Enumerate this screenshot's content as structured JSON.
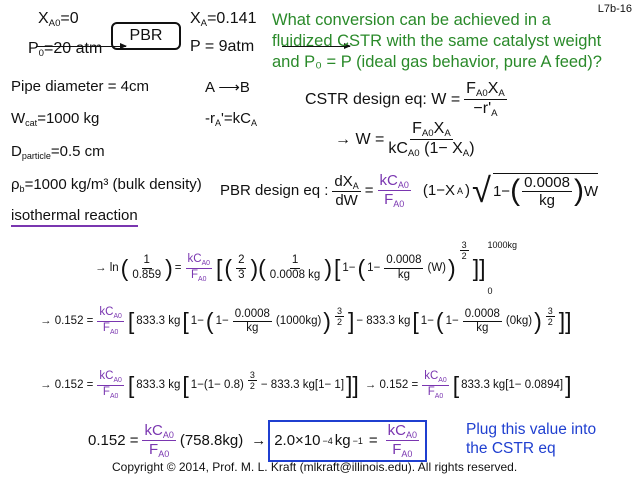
{
  "slide_number": "L7b-16",
  "pbr": {
    "in_top": "X",
    "in_top_sub": "A0",
    "in_top_val": "=0",
    "in_bot": "P",
    "in_bot_sub": "0",
    "in_bot_val": "=20 atm",
    "box": "PBR",
    "out_top": "X",
    "out_top_sub": "A",
    "out_top_val": "=0.141",
    "out_bot": "P = 9atm"
  },
  "question": [
    "What conversion can be achieved in a",
    "fluidized CSTR with the same catalyst weight",
    "and P₀ = P (ideal gas behavior, pure A feed)?"
  ],
  "given": {
    "pipe": "Pipe diameter = 4cm",
    "w": "W",
    "w_sub": "cat",
    "w_val": "=1000 kg",
    "d": "D",
    "d_sub": "particle",
    "d_val": "=0.5 cm",
    "rho": "ρ",
    "rho_sub": "b",
    "rho_val": "=1000 kg/m³ (bulk density)",
    "iso": "isothermal reaction"
  },
  "reaction": {
    "a": "A",
    "b": "B",
    "rate": "-r",
    "rate_sub": "A",
    "rate_val": "'=kC",
    "rate_sub2": "A"
  },
  "cstr": {
    "label": "CSTR design eq: W =",
    "num": "F",
    "num_sub": "A0",
    "num2": "X",
    "num2_sub": "A",
    "den": "−r'",
    "den_sub": "A"
  },
  "cstr2": {
    "lead": "→ W =",
    "num": "F",
    "num_sub": "A0",
    "num2": "X",
    "num2_sub": "A",
    "den": "kC",
    "den_sub": "A0",
    "den2": "(1− X",
    "den2_sub": "A",
    "den3": ")"
  },
  "pbr_eq": {
    "label": "PBR design eq :",
    "num": "dX",
    "num_sub": "A",
    "den": "dW",
    "eq": "=",
    "k": "kC",
    "k_sub": "A0",
    "f": "F",
    "f_sub": "A0",
    "t1": "(1−X",
    "t1_sub": "A",
    "t2": ")",
    "one": "1−",
    "c": "0.0008",
    "kg": "kg",
    "w": "W"
  },
  "eq1": {
    "lead": "→ ln",
    "one": "1",
    "val": "0.859",
    "eq": "=",
    "k": "kC",
    "k_sub": "A0",
    "f": "F",
    "f_sub": "A0",
    "two": "2",
    "three": "3",
    "c_den": "0.0008 kg",
    "one_m": "1−",
    "c": "0.0008",
    "kg": "kg",
    "w": "(W)",
    "exp_n": "3",
    "exp_d": "2",
    "upper": "1000kg",
    "lower": "0"
  },
  "eq2": {
    "lead": "→ 0.152 =",
    "k": "kC",
    "k_sub": "A0",
    "f": "F",
    "f_sub": "A0",
    "coef": "833.3 kg",
    "one_m": "1−",
    "c": "0.0008",
    "kg": "kg",
    "w1": "(1000kg)",
    "minus": "− 833.3 kg",
    "w2": "(0kg)",
    "exp_n": "3",
    "exp_d": "2"
  },
  "eq3": {
    "lead": "→ 0.152 =",
    "k": "kC",
    "k_sub": "A0",
    "f": "F",
    "f_sub": "A0",
    "a": "833.3 kg",
    "b": "1−(1− 0.8)",
    "exp_n": "3",
    "exp_d": "2",
    "c": "− 833.3 kg[1− 1]",
    "lead2": "→ 0.152 =",
    "d": "833.3 kg[1− 0.0894]"
  },
  "eq4": {
    "lead": "0.152 =",
    "k": "kC",
    "k_sub": "A0",
    "f": "F",
    "f_sub": "A0",
    "val": "(758.8kg)",
    "arrow": "→",
    "boxed": "2.0×10",
    "boxed_exp": "−4",
    "boxed_unit": "kg",
    "boxed_unit_exp": "−1",
    "eq": "="
  },
  "note": [
    "Plug this value into",
    "the CSTR eq"
  ],
  "copyright": "Copyright © 2014, Prof. M. L. Kraft (mlkraft@illinois.edu). All rights reserved.",
  "colors": {
    "green": "#2a8a2a",
    "purple": "#7a36b0",
    "blue": "#1f3fd0"
  }
}
